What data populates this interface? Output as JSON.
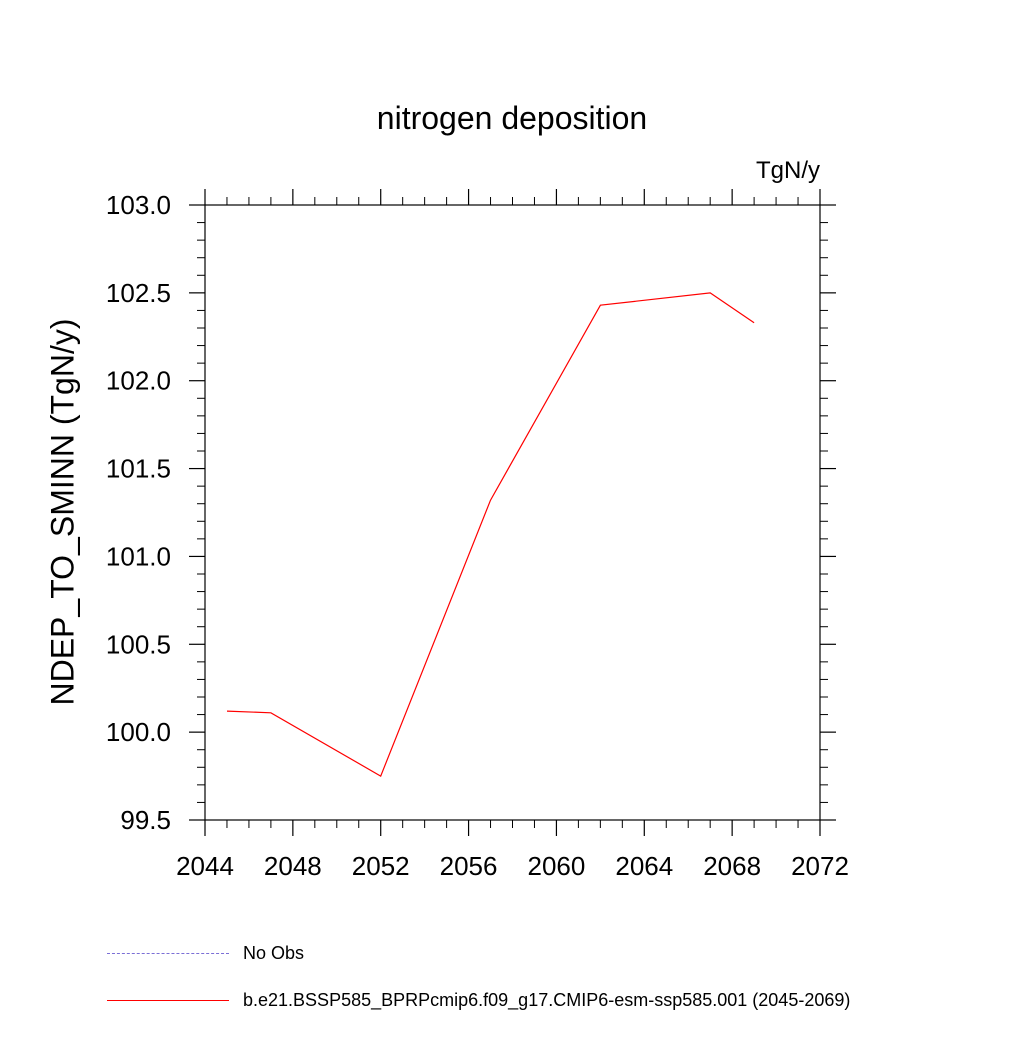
{
  "chart_data": {
    "type": "line",
    "title": "nitrogen deposition",
    "units": "TgN/y",
    "ylabel": "NDEP_TO_SMINN  (TgN/y)",
    "xlabel": "",
    "xlim": [
      2044,
      2072
    ],
    "ylim": [
      99.5,
      103.0
    ],
    "x_ticks": [
      2044,
      2048,
      2052,
      2056,
      2060,
      2064,
      2068,
      2072
    ],
    "y_ticks": [
      99.5,
      100.0,
      100.5,
      101.0,
      101.5,
      102.0,
      102.5,
      103.0
    ],
    "x_tick_labels": [
      "2044",
      "2048",
      "2052",
      "2056",
      "2060",
      "2064",
      "2068",
      "2072"
    ],
    "y_tick_labels": [
      "99.5",
      "100.0",
      "100.5",
      "101.0",
      "101.5",
      "102.0",
      "102.5",
      "103.0"
    ],
    "grid": false,
    "legend_position": "bottom",
    "series": [
      {
        "name": "b.e21.BSSP585_BPRPcmip6.f09_g17.CMIP6-esm-ssp585.001 (2045-2069)",
        "color": "#ff0000",
        "style": "solid",
        "x": [
          2045,
          2047,
          2052,
          2057,
          2062,
          2067,
          2069
        ],
        "y": [
          100.12,
          100.11,
          99.75,
          101.32,
          102.43,
          102.5,
          102.33
        ]
      }
    ],
    "legend": [
      {
        "label": "No Obs",
        "color": "#7b6fd6",
        "style": "dashed"
      },
      {
        "label": "b.e21.BSSP585_BPRPcmip6.f09_g17.CMIP6-esm-ssp585.001 (2045-2069)",
        "color": "#ff0000",
        "style": "solid"
      }
    ]
  }
}
